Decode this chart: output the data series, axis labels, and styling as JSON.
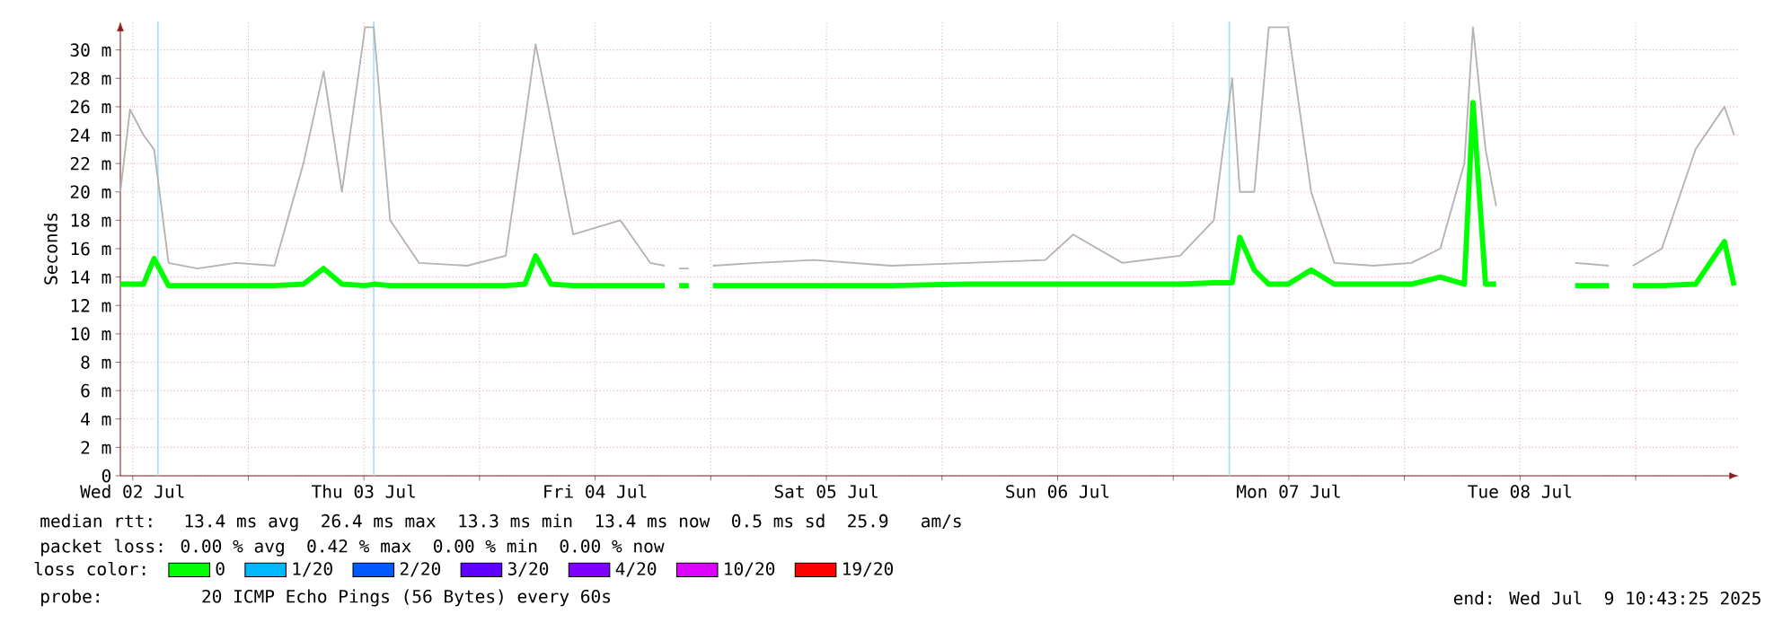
{
  "chart_data": {
    "type": "line",
    "ylabel": "Seconds",
    "legend_title": "loss color:",
    "legend": "bottom",
    "grid": true,
    "xlim": [
      "2025-07-02T10:43",
      "2025-07-09T10:43"
    ],
    "ylim": [
      0,
      32
    ],
    "xticks": [
      {
        "value": "2025-07-02T12:00",
        "label": "Wed 02 Jul"
      },
      {
        "value": "2025-07-03T00:00",
        "label": null
      },
      {
        "value": "2025-07-03T12:00",
        "label": "Thu 03 Jul"
      },
      {
        "value": "2025-07-04T00:00",
        "label": null
      },
      {
        "value": "2025-07-04T12:00",
        "label": "Fri 04 Jul"
      },
      {
        "value": "2025-07-05T00:00",
        "label": null
      },
      {
        "value": "2025-07-05T12:00",
        "label": "Sat 05 Jul"
      },
      {
        "value": "2025-07-06T00:00",
        "label": null
      },
      {
        "value": "2025-07-06T12:00",
        "label": "Sun 06 Jul"
      },
      {
        "value": "2025-07-07T00:00",
        "label": null
      },
      {
        "value": "2025-07-07T12:00",
        "label": "Mon 07 Jul"
      },
      {
        "value": "2025-07-08T00:00",
        "label": null
      },
      {
        "value": "2025-07-08T12:00",
        "label": "Tue 08 Jul"
      },
      {
        "value": "2025-07-09T00:00",
        "label": null
      }
    ],
    "yticks": [
      0,
      {
        "value": 2,
        "label": "2 m"
      },
      {
        "value": 4,
        "label": "4 m"
      },
      {
        "value": 6,
        "label": "6 m"
      },
      {
        "value": 8,
        "label": "8 m"
      },
      {
        "value": 10,
        "label": "10 m"
      },
      {
        "value": 12,
        "label": "12 m"
      },
      {
        "value": 14,
        "label": "14 m"
      },
      {
        "value": 16,
        "label": "16 m"
      },
      {
        "value": 18,
        "label": "18 m"
      },
      {
        "value": 20,
        "label": "20 m"
      },
      {
        "value": 22,
        "label": "22 m"
      },
      {
        "value": 24,
        "label": "24 m"
      },
      {
        "value": 26,
        "label": "26 m"
      },
      {
        "value": 28,
        "label": "28 m"
      },
      {
        "value": 30,
        "label": "30 m"
      }
    ],
    "x": [
      "2025-07-02T10:43",
      "2025-07-02T11:43",
      "2025-07-02T13:07",
      "2025-07-02T14:13",
      "2025-07-02T15:43",
      "2025-07-02T18:43",
      "2025-07-02T22:43",
      "2025-07-03T02:43",
      "2025-07-03T05:43",
      "2025-07-03T07:49",
      "2025-07-03T09:43",
      "2025-07-03T12:07",
      "2025-07-03T13:01",
      "2025-07-03T14:43",
      "2025-07-03T17:43",
      "2025-07-03T22:43",
      "2025-07-04T02:43",
      "2025-07-04T04:43",
      "2025-07-04T05:49",
      "2025-07-04T07:25",
      "2025-07-04T09:43",
      "2025-07-04T14:37",
      "2025-07-04T17:43",
      "2025-07-04T19:13",
      "2025-07-04T19:43",
      "2025-07-04T20:43",
      "2025-07-04T21:43",
      "2025-07-04T22:43",
      "2025-07-05T00:13",
      "2025-07-05T04:43",
      "2025-07-05T10:43",
      "2025-07-05T18:43",
      "2025-07-06T02:43",
      "2025-07-06T10:43",
      "2025-07-06T13:37",
      "2025-07-06T18:43",
      "2025-07-07T00:43",
      "2025-07-07T04:13",
      "2025-07-07T06:07",
      "2025-07-07T06:55",
      "2025-07-07T08:25",
      "2025-07-07T09:55",
      "2025-07-07T11:55",
      "2025-07-07T14:19",
      "2025-07-07T16:43",
      "2025-07-07T20:43",
      "2025-07-08T00:43",
      "2025-07-08T03:43",
      "2025-07-08T06:13",
      "2025-07-08T07:07",
      "2025-07-08T08:25",
      "2025-07-08T09:31",
      "2025-07-08T10:13",
      "2025-07-08T17:43",
      "2025-07-08T21:13",
      "2025-07-08T22:43",
      "2025-07-08T23:43",
      "2025-07-09T02:43",
      "2025-07-09T06:13",
      "2025-07-09T09:13",
      "2025-07-09T10:13"
    ],
    "series": [
      {
        "color": "#b4b4b4",
        "values": [
          20,
          25.8,
          24,
          23,
          15,
          14.6,
          15,
          14.8,
          22,
          28.5,
          20,
          31.6,
          31.6,
          18,
          15,
          14.8,
          15.5,
          25,
          30.4,
          25,
          17,
          18,
          15,
          14.8,
          null,
          14.6,
          14.6,
          null,
          14.8,
          15,
          15.2,
          14.8,
          15,
          15.2,
          17,
          15,
          15.5,
          18,
          28,
          20,
          20,
          31.6,
          31.6,
          20,
          15,
          14.8,
          15,
          16,
          22,
          31.6,
          23,
          19,
          null,
          15,
          14.8,
          null,
          14.8,
          16,
          23,
          26,
          24
        ]
      },
      {
        "name": "0",
        "color": "#00ff00",
        "values": [
          13.5,
          13.5,
          13.5,
          15.3,
          13.4,
          13.4,
          13.4,
          13.4,
          13.5,
          14.6,
          13.5,
          13.4,
          13.5,
          13.4,
          13.4,
          13.4,
          13.4,
          13.5,
          15.5,
          13.5,
          13.4,
          13.4,
          13.4,
          13.4,
          null,
          13.4,
          13.4,
          null,
          13.4,
          13.4,
          13.4,
          13.4,
          13.5,
          13.5,
          13.5,
          13.5,
          13.5,
          13.6,
          13.6,
          16.8,
          14.5,
          13.5,
          13.5,
          14.5,
          13.5,
          13.5,
          13.5,
          14,
          13.5,
          26.3,
          13.5,
          13.5,
          null,
          13.4,
          13.4,
          null,
          13.4,
          13.4,
          13.5,
          16.5,
          13.4
        ]
      },
      {
        "name": "1/20",
        "color": "#00b8ff",
        "values": [
          null,
          null,
          null,
          null,
          null,
          null,
          null,
          null,
          null,
          null,
          null,
          null,
          null,
          null,
          null,
          null,
          null,
          null,
          null,
          null,
          null,
          null,
          null,
          null,
          null,
          null,
          null,
          null,
          null,
          null,
          null,
          null,
          null,
          null,
          null,
          null,
          null,
          null,
          null,
          null,
          null,
          null,
          null,
          null,
          null,
          null,
          null,
          null,
          null,
          null,
          null,
          null,
          null,
          null,
          null,
          null,
          null,
          null,
          null,
          null,
          null
        ]
      },
      {
        "name": "2/20",
        "color": "#0059ff",
        "values": [
          null,
          null,
          null,
          null,
          null,
          null,
          null,
          null,
          null,
          null,
          null,
          null,
          null,
          null,
          null,
          null,
          null,
          null,
          null,
          null,
          null,
          null,
          null,
          null,
          null,
          null,
          null,
          null,
          null,
          null,
          null,
          null,
          null,
          null,
          null,
          null,
          null,
          null,
          null,
          null,
          null,
          null,
          null,
          null,
          null,
          null,
          null,
          null,
          null,
          null,
          null,
          null,
          null,
          null,
          null,
          null,
          null,
          null,
          null,
          null,
          null
        ]
      },
      {
        "name": "3/20",
        "color": "#5e00ff",
        "values": [
          null,
          null,
          null,
          null,
          null,
          null,
          null,
          null,
          null,
          null,
          null,
          null,
          null,
          null,
          null,
          null,
          null,
          null,
          null,
          null,
          null,
          null,
          null,
          null,
          null,
          null,
          null,
          null,
          null,
          null,
          null,
          null,
          null,
          null,
          null,
          null,
          null,
          null,
          null,
          null,
          null,
          null,
          null,
          null,
          null,
          null,
          null,
          null,
          null,
          null,
          null,
          null,
          null,
          null,
          null,
          null,
          null,
          null,
          null,
          null,
          null
        ]
      },
      {
        "name": "4/20",
        "color": "#7e00ff",
        "values": [
          null,
          null,
          null,
          null,
          null,
          null,
          null,
          null,
          null,
          null,
          null,
          null,
          null,
          null,
          null,
          null,
          null,
          null,
          null,
          null,
          null,
          null,
          null,
          null,
          null,
          null,
          null,
          null,
          null,
          null,
          null,
          null,
          null,
          null,
          null,
          null,
          null,
          null,
          null,
          null,
          null,
          null,
          null,
          null,
          null,
          null,
          null,
          null,
          null,
          null,
          null,
          null,
          null,
          null,
          null,
          null,
          null,
          null,
          null,
          null,
          null
        ]
      },
      {
        "name": "10/20",
        "color": "#dd00ff",
        "values": [
          null,
          null,
          null,
          null,
          null,
          null,
          null,
          null,
          null,
          null,
          null,
          null,
          null,
          null,
          null,
          null,
          null,
          null,
          null,
          null,
          null,
          null,
          null,
          null,
          null,
          null,
          null,
          null,
          null,
          null,
          null,
          null,
          null,
          null,
          null,
          null,
          null,
          null,
          null,
          null,
          null,
          null,
          null,
          null,
          null,
          null,
          null,
          null,
          null,
          null,
          null,
          null,
          null,
          null,
          null,
          null,
          null,
          null,
          null,
          null,
          null
        ]
      },
      {
        "name": "19/20",
        "color": "#ff0000",
        "values": [
          null,
          null,
          null,
          null,
          null,
          null,
          null,
          null,
          null,
          null,
          null,
          null,
          null,
          null,
          null,
          null,
          null,
          null,
          null,
          null,
          null,
          null,
          null,
          null,
          null,
          null,
          null,
          null,
          null,
          null,
          null,
          null,
          null,
          null,
          null,
          null,
          null,
          null,
          null,
          null,
          null,
          null,
          null,
          null,
          null,
          null,
          null,
          null,
          null,
          null,
          null,
          null,
          null,
          null,
          null,
          null,
          null,
          null,
          null,
          null,
          null
        ]
      }
    ],
    "ref_lines": [
      {
        "axis": "x",
        "value": "2025-07-02T14:37",
        "color": "#9fe0ff"
      },
      {
        "axis": "x",
        "value": "2025-07-03T13:01",
        "color": "#9fe0ff"
      },
      {
        "axis": "x",
        "value": "2025-07-07T05:49",
        "color": "#9fe0ff"
      }
    ],
    "annotations": [
      "median rtt:  13.4 ms avg  26.4 ms max  13.3 ms min  13.4 ms now  0.5 ms sd  25.9   am/s",
      "packet loss: 0.00 % avg  0.42 % max  0.00 % min  0.00 % now",
      "probe:       20 ICMP Echo Pings (56 Bytes) every 60s",
      "end: Wed Jul  9 10:43:25 2025"
    ]
  }
}
